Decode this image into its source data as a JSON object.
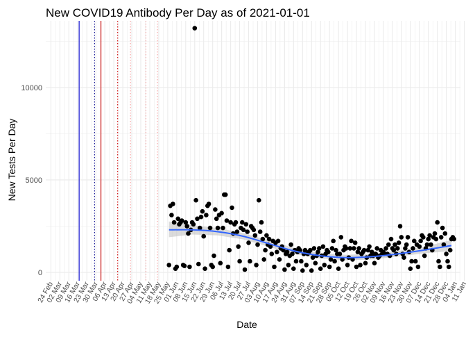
{
  "colors": {
    "points": "#000000",
    "smooth_line": "#3366FF",
    "ci_band": "#BEBEBE",
    "vline_blue": "#0000CD",
    "vline_navy_dotted": "#00008B",
    "vline_red": "#CC0000",
    "vline_red_dotted": "#CC0000",
    "vline_pink_dotted": "#F4A0A0",
    "grid": "#EBEBEB"
  },
  "chart_data": {
    "type": "scatter",
    "title": "New COVID19 Antibody Per Day as of 2021-01-01",
    "xlabel": "Date",
    "ylabel": "New Tests Per Day",
    "ylim": [
      -450,
      13600
    ],
    "xlim_day_index": [
      -4,
      319
    ],
    "y_ticks": [
      {
        "value": 0,
        "label": "0"
      },
      {
        "value": 5000,
        "label": "5000"
      },
      {
        "value": 10000,
        "label": "10000"
      }
    ],
    "x_ticks": [
      {
        "day": 0,
        "label": "24 Feb"
      },
      {
        "day": 7,
        "label": "02 Mar"
      },
      {
        "day": 14,
        "label": "09 Mar"
      },
      {
        "day": 21,
        "label": "16 Mar"
      },
      {
        "day": 28,
        "label": "23 Mar"
      },
      {
        "day": 35,
        "label": "30 Mar"
      },
      {
        "day": 42,
        "label": "06 Apr"
      },
      {
        "day": 49,
        "label": "13 Apr"
      },
      {
        "day": 56,
        "label": "20 Apr"
      },
      {
        "day": 63,
        "label": "27 Apr"
      },
      {
        "day": 70,
        "label": "04 May"
      },
      {
        "day": 77,
        "label": "11 May"
      },
      {
        "day": 84,
        "label": "18 May"
      },
      {
        "day": 91,
        "label": "25 May"
      },
      {
        "day": 98,
        "label": "01 Jun"
      },
      {
        "day": 105,
        "label": "08 Jun"
      },
      {
        "day": 112,
        "label": "15 Jun"
      },
      {
        "day": 119,
        "label": "22 Jun"
      },
      {
        "day": 126,
        "label": "29 Jun"
      },
      {
        "day": 133,
        "label": "06 Jul"
      },
      {
        "day": 140,
        "label": "13 Jul"
      },
      {
        "day": 147,
        "label": "20 Jul"
      },
      {
        "day": 154,
        "label": "27 Jul"
      },
      {
        "day": 161,
        "label": "03 Aug"
      },
      {
        "day": 168,
        "label": "10 Aug"
      },
      {
        "day": 175,
        "label": "17 Aug"
      },
      {
        "day": 182,
        "label": "24 Aug"
      },
      {
        "day": 189,
        "label": "31 Aug"
      },
      {
        "day": 196,
        "label": "07 Sep"
      },
      {
        "day": 203,
        "label": "14 Sep"
      },
      {
        "day": 210,
        "label": "21 Sep"
      },
      {
        "day": 217,
        "label": "28 Sep"
      },
      {
        "day": 224,
        "label": "05 Oct"
      },
      {
        "day": 231,
        "label": "12 Oct"
      },
      {
        "day": 238,
        "label": "19 Oct"
      },
      {
        "day": 245,
        "label": "26 Oct"
      },
      {
        "day": 252,
        "label": "02 Nov"
      },
      {
        "day": 259,
        "label": "09 Nov"
      },
      {
        "day": 266,
        "label": "16 Nov"
      },
      {
        "day": 273,
        "label": "23 Nov"
      },
      {
        "day": 280,
        "label": "30 Nov"
      },
      {
        "day": 287,
        "label": "07 Dec"
      },
      {
        "day": 294,
        "label": "14 Dec"
      },
      {
        "day": 301,
        "label": "21 Dec"
      },
      {
        "day": 308,
        "label": "28 Dec"
      },
      {
        "day": 315,
        "label": "04 Jan"
      },
      {
        "day": 322,
        "label": "11 Jan"
      }
    ],
    "vlines": [
      {
        "day": 22,
        "color_key": "vline_blue",
        "style": "solid"
      },
      {
        "day": 34,
        "color_key": "vline_navy_dotted",
        "style": "dotted"
      },
      {
        "day": 39,
        "color_key": "vline_red",
        "style": "solid"
      },
      {
        "day": 52,
        "color_key": "vline_red_dotted",
        "style": "dotted"
      },
      {
        "day": 62,
        "color_key": "vline_pink_dotted",
        "style": "dotted"
      },
      {
        "day": 74,
        "color_key": "vline_pink_dotted",
        "style": "dotted"
      },
      {
        "day": 83,
        "color_key": "vline_pink_dotted",
        "style": "dotted"
      }
    ],
    "smooth": [
      {
        "day": 92,
        "y": 2300,
        "lo": 1900,
        "hi": 2750
      },
      {
        "day": 110,
        "y": 2300,
        "lo": 2050,
        "hi": 2550
      },
      {
        "day": 130,
        "y": 2200,
        "lo": 2000,
        "hi": 2400
      },
      {
        "day": 150,
        "y": 1950,
        "lo": 1780,
        "hi": 2120
      },
      {
        "day": 170,
        "y": 1550,
        "lo": 1380,
        "hi": 1720
      },
      {
        "day": 190,
        "y": 1150,
        "lo": 990,
        "hi": 1310
      },
      {
        "day": 210,
        "y": 900,
        "lo": 750,
        "hi": 1050
      },
      {
        "day": 230,
        "y": 800,
        "lo": 650,
        "hi": 950
      },
      {
        "day": 250,
        "y": 850,
        "lo": 700,
        "hi": 1000
      },
      {
        "day": 270,
        "y": 1000,
        "lo": 850,
        "hi": 1150
      },
      {
        "day": 290,
        "y": 1200,
        "lo": 1030,
        "hi": 1370
      },
      {
        "day": 312,
        "y": 1450,
        "lo": 1150,
        "hi": 1750
      }
    ],
    "series": [
      {
        "name": "New Tests Per Day",
        "points": [
          [
            92,
            400
          ],
          [
            93,
            3600
          ],
          [
            94,
            3100
          ],
          [
            95,
            3700
          ],
          [
            96,
            2700
          ],
          [
            97,
            200
          ],
          [
            98,
            300
          ],
          [
            99,
            2900
          ],
          [
            100,
            2600
          ],
          [
            101,
            2700
          ],
          [
            102,
            2800
          ],
          [
            103,
            400
          ],
          [
            104,
            350
          ],
          [
            105,
            2700
          ],
          [
            106,
            2500
          ],
          [
            107,
            2100
          ],
          [
            108,
            300
          ],
          [
            109,
            2300
          ],
          [
            110,
            2700
          ],
          [
            111,
            2600
          ],
          [
            112,
            13200
          ],
          [
            113,
            3900
          ],
          [
            114,
            2900
          ],
          [
            115,
            450
          ],
          [
            116,
            2400
          ],
          [
            117,
            3000
          ],
          [
            118,
            3300
          ],
          [
            119,
            1950
          ],
          [
            120,
            200
          ],
          [
            121,
            3100
          ],
          [
            122,
            3600
          ],
          [
            123,
            3700
          ],
          [
            124,
            2400
          ],
          [
            125,
            400
          ],
          [
            126,
            300
          ],
          [
            127,
            900
          ],
          [
            128,
            3400
          ],
          [
            129,
            2900
          ],
          [
            130,
            2400
          ],
          [
            131,
            3100
          ],
          [
            132,
            500
          ],
          [
            133,
            3200
          ],
          [
            134,
            2400
          ],
          [
            135,
            4200
          ],
          [
            136,
            4200
          ],
          [
            137,
            2800
          ],
          [
            138,
            300
          ],
          [
            139,
            1200
          ],
          [
            140,
            2700
          ],
          [
            141,
            3500
          ],
          [
            142,
            2100
          ],
          [
            143,
            2600
          ],
          [
            144,
            2700
          ],
          [
            145,
            2200
          ],
          [
            146,
            1400
          ],
          [
            147,
            600
          ],
          [
            148,
            2400
          ],
          [
            149,
            2700
          ],
          [
            150,
            2300
          ],
          [
            151,
            150
          ],
          [
            152,
            2600
          ],
          [
            153,
            2200
          ],
          [
            154,
            1600
          ],
          [
            155,
            600
          ],
          [
            156,
            2500
          ],
          [
            157,
            2400
          ],
          [
            158,
            2300
          ],
          [
            159,
            2000
          ],
          [
            160,
            400
          ],
          [
            161,
            1500
          ],
          [
            162,
            3900
          ],
          [
            163,
            2200
          ],
          [
            164,
            2700
          ],
          [
            165,
            1800
          ],
          [
            166,
            700
          ],
          [
            167,
            1200
          ],
          [
            168,
            2000
          ],
          [
            169,
            1500
          ],
          [
            170,
            1800
          ],
          [
            171,
            1400
          ],
          [
            172,
            1000
          ],
          [
            173,
            1700
          ],
          [
            174,
            300
          ],
          [
            175,
            1600
          ],
          [
            176,
            1100
          ],
          [
            177,
            1700
          ],
          [
            178,
            700
          ],
          [
            179,
            1300
          ],
          [
            180,
            1400
          ],
          [
            181,
            1200
          ],
          [
            182,
            150
          ],
          [
            183,
            1000
          ],
          [
            184,
            1100
          ],
          [
            185,
            400
          ],
          [
            186,
            900
          ],
          [
            187,
            1500
          ],
          [
            188,
            1000
          ],
          [
            189,
            200
          ],
          [
            190,
            1200
          ],
          [
            191,
            600
          ],
          [
            192,
            1100
          ],
          [
            193,
            1300
          ],
          [
            194,
            1200
          ],
          [
            195,
            600
          ],
          [
            196,
            100
          ],
          [
            197,
            1000
          ],
          [
            198,
            1200
          ],
          [
            199,
            400
          ],
          [
            200,
            1000
          ],
          [
            201,
            1100
          ],
          [
            202,
            1200
          ],
          [
            203,
            100
          ],
          [
            204,
            800
          ],
          [
            205,
            1300
          ],
          [
            206,
            500
          ],
          [
            207,
            900
          ],
          [
            208,
            1100
          ],
          [
            209,
            1300
          ],
          [
            210,
            200
          ],
          [
            211,
            900
          ],
          [
            212,
            1400
          ],
          [
            213,
            400
          ],
          [
            214,
            1000
          ],
          [
            215,
            1200
          ],
          [
            216,
            1100
          ],
          [
            217,
            300
          ],
          [
            218,
            700
          ],
          [
            219,
            1300
          ],
          [
            220,
            1700
          ],
          [
            221,
            600
          ],
          [
            222,
            1200
          ],
          [
            223,
            1000
          ],
          [
            224,
            200
          ],
          [
            225,
            1000
          ],
          [
            226,
            1900
          ],
          [
            227,
            700
          ],
          [
            228,
            1200
          ],
          [
            229,
            1400
          ],
          [
            230,
            1300
          ],
          [
            231,
            400
          ],
          [
            232,
            800
          ],
          [
            233,
            1300
          ],
          [
            234,
            1700
          ],
          [
            235,
            700
          ],
          [
            236,
            1300
          ],
          [
            237,
            1600
          ],
          [
            238,
            300
          ],
          [
            239,
            1100
          ],
          [
            240,
            1300
          ],
          [
            241,
            400
          ],
          [
            242,
            1000
          ],
          [
            243,
            1100
          ],
          [
            244,
            1200
          ],
          [
            245,
            500
          ],
          [
            246,
            800
          ],
          [
            247,
            1200
          ],
          [
            248,
            1400
          ],
          [
            249,
            900
          ],
          [
            250,
            1100
          ],
          [
            251,
            900
          ],
          [
            252,
            500
          ],
          [
            253,
            1000
          ],
          [
            254,
            1300
          ],
          [
            255,
            800
          ],
          [
            256,
            900
          ],
          [
            257,
            1200
          ],
          [
            258,
            1000
          ],
          [
            259,
            1100
          ],
          [
            260,
            1000
          ],
          [
            261,
            1300
          ],
          [
            262,
            1000
          ],
          [
            263,
            1500
          ],
          [
            264,
            900
          ],
          [
            265,
            1800
          ],
          [
            266,
            1300
          ],
          [
            267,
            1200
          ],
          [
            268,
            1500
          ],
          [
            269,
            1000
          ],
          [
            270,
            1300
          ],
          [
            271,
            1600
          ],
          [
            272,
            2500
          ],
          [
            273,
            1900
          ],
          [
            274,
            1000
          ],
          [
            275,
            800
          ],
          [
            276,
            1300
          ],
          [
            277,
            1500
          ],
          [
            278,
            1900
          ],
          [
            279,
            1100
          ],
          [
            280,
            200
          ],
          [
            281,
            600
          ],
          [
            282,
            1300
          ],
          [
            283,
            1700
          ],
          [
            284,
            600
          ],
          [
            285,
            1500
          ],
          [
            286,
            300
          ],
          [
            287,
            1400
          ],
          [
            288,
            1700
          ],
          [
            289,
            2000
          ],
          [
            290,
            1900
          ],
          [
            291,
            900
          ],
          [
            292,
            1300
          ],
          [
            293,
            1500
          ],
          [
            294,
            1800
          ],
          [
            295,
            2000
          ],
          [
            296,
            1500
          ],
          [
            297,
            1200
          ],
          [
            298,
            1900
          ],
          [
            299,
            2100
          ],
          [
            300,
            1800
          ],
          [
            301,
            2700
          ],
          [
            302,
            600
          ],
          [
            303,
            300
          ],
          [
            304,
            1900
          ],
          [
            305,
            2400
          ],
          [
            306,
            1500
          ],
          [
            307,
            2100
          ],
          [
            308,
            1000
          ],
          [
            309,
            600
          ],
          [
            310,
            300
          ],
          [
            311,
            1200
          ],
          [
            312,
            1800
          ],
          [
            313,
            1900
          ],
          [
            314,
            1800
          ]
        ]
      }
    ]
  }
}
